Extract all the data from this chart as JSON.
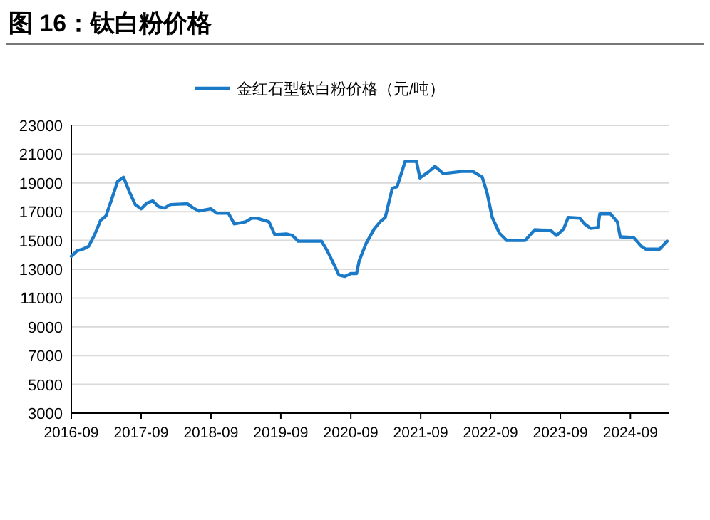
{
  "chart_data": {
    "type": "line",
    "title": "图 16：钛白粉价格",
    "x": [
      "2016-09-01",
      "2016-10-01",
      "2016-11-01",
      "2016-12-01",
      "2017-01-01",
      "2017-02-01",
      "2017-03-01",
      "2017-04-01",
      "2017-05-01",
      "2017-06-01",
      "2017-07-01",
      "2017-08-01",
      "2017-09-01",
      "2017-10-01",
      "2017-11-01",
      "2017-12-01",
      "2018-01-01",
      "2018-02-01",
      "2018-05-01",
      "2018-06-01",
      "2018-07-01",
      "2018-09-01",
      "2018-10-01",
      "2018-12-01",
      "2019-01-01",
      "2019-03-01",
      "2019-04-01",
      "2019-05-01",
      "2019-07-01",
      "2019-08-01",
      "2019-10-01",
      "2019-11-01",
      "2019-12-01",
      "2020-04-01",
      "2020-05-01",
      "2020-06-01",
      "2020-07-01",
      "2020-08-01",
      "2020-09-01",
      "2020-10-01",
      "2020-10-15",
      "2020-11-20",
      "2021-01-01",
      "2021-02-01",
      "2021-02-28",
      "2021-04-05",
      "2021-05-01",
      "2021-06-12",
      "2021-08-10",
      "2021-08-28",
      "2021-10-10",
      "2021-11-15",
      "2021-12-28",
      "2022-04-01",
      "2022-06-01",
      "2022-07-20",
      "2022-08-15",
      "2022-09-10",
      "2022-10-18",
      "2022-11-25",
      "2023-03-01",
      "2023-04-20",
      "2023-07-12",
      "2023-08-12",
      "2023-09-18",
      "2023-10-12",
      "2023-12-12",
      "2024-01-06",
      "2024-02-06",
      "2024-03-15",
      "2024-03-25",
      "2024-05-20",
      "2024-06-25",
      "2024-07-10",
      "2024-09-18",
      "2024-10-28",
      "2024-11-20",
      "2025-02-01",
      "2025-03-12"
    ],
    "series": [
      {
        "name": "金红石型钛白粉价格（元/吨）",
        "color": "#1a7ac8",
        "values": [
          13900,
          14280,
          14400,
          14600,
          15400,
          16400,
          16700,
          17900,
          19100,
          19400,
          18400,
          17500,
          17200,
          17600,
          17750,
          17350,
          17250,
          17500,
          17550,
          17250,
          17050,
          17200,
          16900,
          16900,
          16150,
          16300,
          16550,
          16550,
          16300,
          15400,
          15450,
          15350,
          14950,
          14950,
          14280,
          13450,
          12600,
          12500,
          12700,
          12700,
          13600,
          14800,
          15800,
          16300,
          16600,
          18600,
          18750,
          20500,
          20500,
          19350,
          19750,
          20150,
          19650,
          19800,
          19800,
          19400,
          18250,
          16600,
          15500,
          15000,
          15000,
          15750,
          15700,
          15350,
          15800,
          16600,
          16550,
          16150,
          15850,
          15900,
          16850,
          16850,
          16300,
          15250,
          15200,
          14600,
          14400,
          14400,
          14950
        ]
      }
    ],
    "xlim": [
      "2016-09-01",
      "2025-03-20"
    ],
    "xticks": [
      "2016-09",
      "2017-09",
      "2018-09",
      "2019-09",
      "2020-09",
      "2021-09",
      "2022-09",
      "2023-09",
      "2024-09"
    ],
    "ylim": [
      3000,
      23000
    ],
    "yticks": [
      3000,
      5000,
      7000,
      9000,
      11000,
      13000,
      15000,
      17000,
      19000,
      21000,
      23000
    ],
    "grid": "y",
    "legend": "top"
  }
}
